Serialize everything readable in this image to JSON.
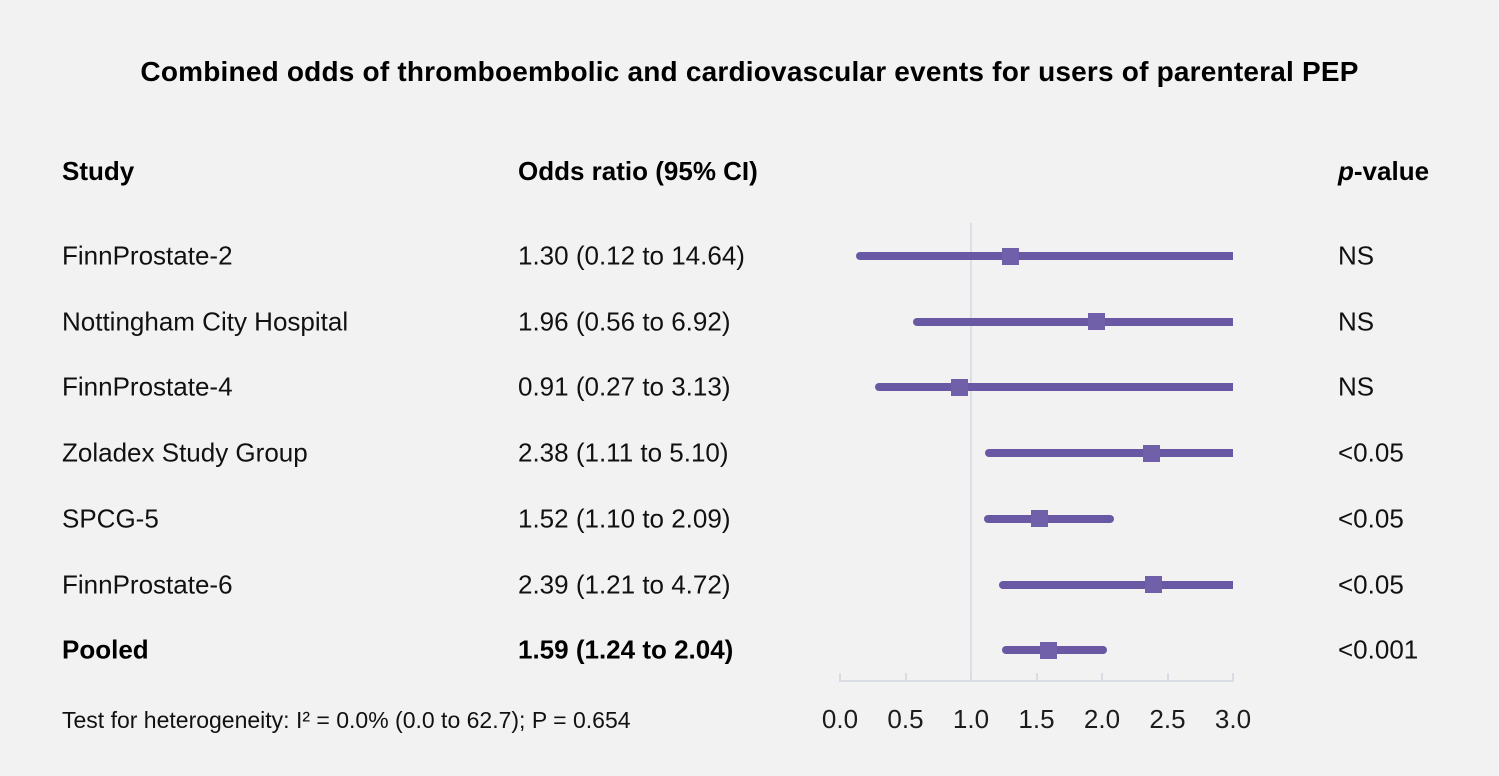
{
  "title": "Combined odds of thromboembolic and cardiovascular events for users of parenteral PEP",
  "columns": {
    "study": "Study",
    "odds_ratio": "Odds ratio (95% CI)",
    "p_value_italic": "p",
    "p_value_rest": "-value"
  },
  "colors": {
    "background": "#f2f2f2",
    "ci_bar": "#6959a4",
    "marker": "#7060aa",
    "axis": "#d9dde3",
    "reference_line": "#dcdfe5",
    "text": "#111111"
  },
  "chart_data": {
    "type": "forest",
    "title": "Combined odds of thromboembolic and cardiovascular events for users of parenteral PEP",
    "xlabel": "",
    "xlim": [
      0,
      3
    ],
    "x_tick_labels": [
      "0.0",
      "0.5",
      "1.0",
      "1.5",
      "2.0",
      "2.5",
      "3.0"
    ],
    "reference_line_x": 1.0,
    "grid": false,
    "studies": [
      {
        "label": "FinnProstate-2",
        "or": 1.3,
        "ci_low": 0.12,
        "ci_high": 14.64,
        "or_text": "1.30 (0.12 to 14.64)",
        "p_value": "NS",
        "pooled": false
      },
      {
        "label": "Nottingham City Hospital",
        "or": 1.96,
        "ci_low": 0.56,
        "ci_high": 6.92,
        "or_text": "1.96 (0.56 to 6.92)",
        "p_value": "NS",
        "pooled": false
      },
      {
        "label": "FinnProstate-4",
        "or": 0.91,
        "ci_low": 0.27,
        "ci_high": 3.13,
        "or_text": "0.91 (0.27 to 3.13)",
        "p_value": "NS",
        "pooled": false
      },
      {
        "label": "Zoladex Study Group",
        "or": 2.38,
        "ci_low": 1.11,
        "ci_high": 5.1,
        "or_text": "2.38 (1.11 to 5.10)",
        "p_value": "<0.05",
        "pooled": false
      },
      {
        "label": "SPCG-5",
        "or": 1.52,
        "ci_low": 1.1,
        "ci_high": 2.09,
        "or_text": "1.52 (1.10 to 2.09)",
        "p_value": "<0.05",
        "pooled": false
      },
      {
        "label": "FinnProstate-6",
        "or": 2.39,
        "ci_low": 1.21,
        "ci_high": 4.72,
        "or_text": "2.39 (1.21 to 4.72)",
        "p_value": "<0.05",
        "pooled": false
      },
      {
        "label": "Pooled",
        "or": 1.59,
        "ci_low": 1.24,
        "ci_high": 2.04,
        "or_text": "1.59 (1.24 to 2.04)",
        "p_value": "<0.001",
        "pooled": true
      }
    ],
    "heterogeneity_note": "Test for heterogeneity: I² = 0.0% (0.0 to 62.7); P = 0.654"
  }
}
